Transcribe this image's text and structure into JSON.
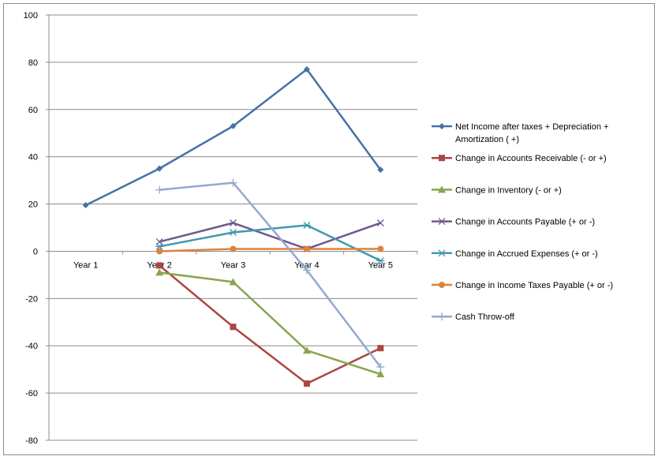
{
  "chart_data": {
    "type": "line",
    "title": "",
    "xlabel": "",
    "ylabel": "",
    "categories": [
      "Year 1",
      "Year 2",
      "Year 3",
      "Year 4",
      "Year 5"
    ],
    "ylim": [
      -80,
      100
    ],
    "yticks": [
      100,
      80,
      60,
      40,
      20,
      0,
      -20,
      -40,
      -60,
      -80
    ],
    "grid": "horizontal",
    "legend_position": "right",
    "series": [
      {
        "name": "Net Income after taxes + Depreciation + Amortization       ( +)",
        "legend_lines": [
          "Net Income after taxes + Depreciation +",
          "Amortization       ( +)"
        ],
        "color": "#4572A7",
        "marker": "diamond",
        "values": [
          19.5,
          35,
          53,
          77,
          34.5
        ]
      },
      {
        "name": "Change in  Accounts Receivable   (- or +)",
        "legend_lines": [
          "Change in  Accounts Receivable   (- or +)"
        ],
        "color": "#AA4643",
        "marker": "square",
        "values": [
          null,
          -6,
          -32,
          -56,
          -41
        ]
      },
      {
        "name": "Change in  Inventory          (- or +)",
        "legend_lines": [
          "Change in  Inventory          (- or +)"
        ],
        "color": "#89A54E",
        "marker": "triangle",
        "values": [
          null,
          -9,
          -13,
          -42,
          -52
        ]
      },
      {
        "name": "Change in  Accounts Payable     (+ or -)",
        "legend_lines": [
          "Change in  Accounts Payable     (+ or -)"
        ],
        "color": "#71588F",
        "marker": "x",
        "values": [
          null,
          4,
          12,
          1,
          12
        ]
      },
      {
        "name": "Change in  Accrued Expenses    (+ or -)",
        "legend_lines": [
          "Change in  Accrued Expenses    (+ or -)"
        ],
        "color": "#4198AF",
        "marker": "star",
        "values": [
          null,
          2,
          8,
          11,
          -4
        ]
      },
      {
        "name": "Change in  Income Taxes Payable     (+ or -)",
        "legend_lines": [
          "Change in  Income Taxes Payable     (+ or -)"
        ],
        "color": "#DB843D",
        "marker": "circle",
        "values": [
          null,
          0,
          1,
          1,
          1
        ]
      },
      {
        "name": "Cash Throw-off",
        "legend_lines": [
          "Cash Throw-off"
        ],
        "color": "#93A9CF",
        "marker": "plus",
        "values": [
          null,
          26,
          29,
          -8,
          -49
        ]
      }
    ]
  }
}
